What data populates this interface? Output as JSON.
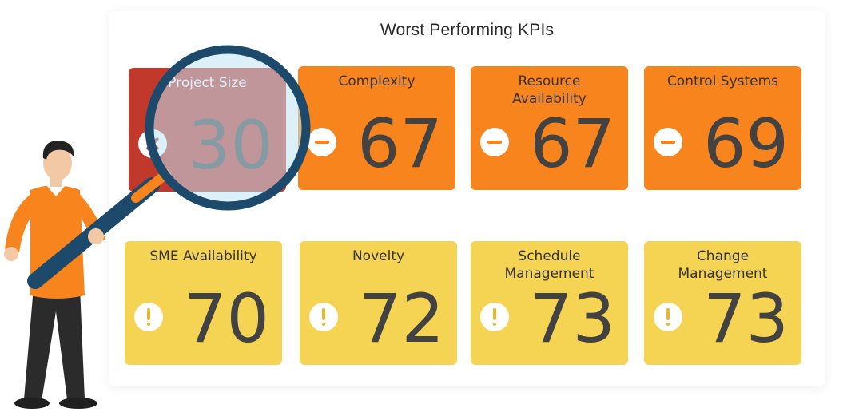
{
  "header": {
    "title": "Worst Performing KPIs"
  },
  "colors": {
    "critical": "#c0392b",
    "poor": "#f7841c",
    "warning": "#f6d453"
  },
  "kpis": [
    {
      "label": "Project Size",
      "value": "30",
      "status": "critical",
      "icon": "cross-icon"
    },
    {
      "label": "Complexity",
      "value": "67",
      "status": "poor",
      "icon": "minus-icon"
    },
    {
      "label": "Resource Availability",
      "value": "67",
      "status": "poor",
      "icon": "minus-icon"
    },
    {
      "label": "Control Systems",
      "value": "69",
      "status": "poor",
      "icon": "minus-icon"
    },
    {
      "label": "SME Availability",
      "value": "70",
      "status": "warning",
      "icon": "exclamation-icon"
    },
    {
      "label": "Novelty",
      "value": "72",
      "status": "warning",
      "icon": "exclamation-icon"
    },
    {
      "label": "Schedule Management",
      "value": "73",
      "status": "warning",
      "icon": "exclamation-icon"
    },
    {
      "label": "Change Management",
      "value": "73",
      "status": "warning",
      "icon": "exclamation-icon"
    }
  ],
  "illustration": {
    "figure": "man-with-magnifier",
    "icon": "magnifying-glass-icon"
  }
}
